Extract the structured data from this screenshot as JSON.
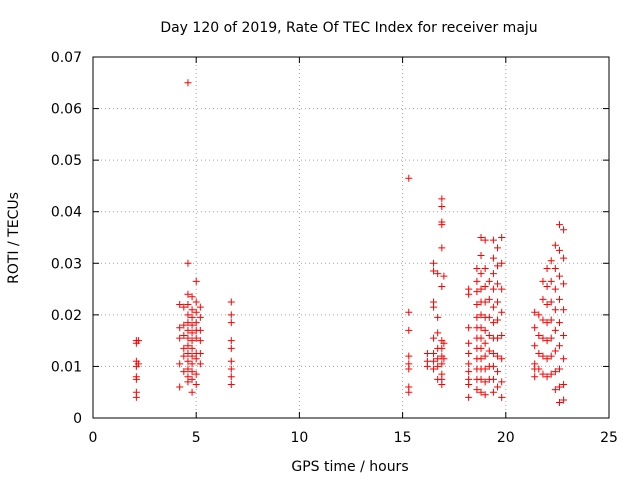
{
  "chart_data": {
    "type": "scatter",
    "title": "Day 120 of 2019, Rate Of TEC Index for receiver maju",
    "xlabel": "GPS time / hours",
    "ylabel": "ROTI / TECUs",
    "xlim": [
      0,
      25
    ],
    "ylim": [
      0,
      0.07
    ],
    "grid": true,
    "marker": "+",
    "color": "#ff0000",
    "xticks": [
      {
        "value": 0,
        "label": "0"
      },
      {
        "value": 5,
        "label": "5"
      },
      {
        "value": 10,
        "label": "10"
      },
      {
        "value": 15,
        "label": "15"
      },
      {
        "value": 20,
        "label": "20"
      },
      {
        "value": 25,
        "label": "25"
      }
    ],
    "yticks": [
      {
        "value": 0,
        "label": "0"
      },
      {
        "value": 0.01,
        "label": "0.01"
      },
      {
        "value": 0.02,
        "label": "0.02"
      },
      {
        "value": 0.03,
        "label": "0.03"
      },
      {
        "value": 0.04,
        "label": "0.04"
      },
      {
        "value": 0.05,
        "label": "0.05"
      },
      {
        "value": 0.06,
        "label": "0.06"
      },
      {
        "value": 0.07,
        "label": "0.07"
      }
    ],
    "series": [
      {
        "name": "ROTI",
        "points": [
          [
            2.1,
            0.015
          ],
          [
            2.1,
            0.0145
          ],
          [
            2.1,
            0.011
          ],
          [
            2.1,
            0.01
          ],
          [
            2.1,
            0.008
          ],
          [
            2.1,
            0.0075
          ],
          [
            2.1,
            0.005
          ],
          [
            2.1,
            0.004
          ],
          [
            2.2,
            0.015
          ],
          [
            2.2,
            0.0105
          ],
          [
            4.2,
            0.022
          ],
          [
            4.2,
            0.0175
          ],
          [
            4.2,
            0.0155
          ],
          [
            4.2,
            0.0105
          ],
          [
            4.2,
            0.006
          ],
          [
            4.4,
            0.0215
          ],
          [
            4.4,
            0.018
          ],
          [
            4.4,
            0.016
          ],
          [
            4.4,
            0.0135
          ],
          [
            4.4,
            0.012
          ],
          [
            4.4,
            0.009
          ],
          [
            4.6,
            0.065
          ],
          [
            4.6,
            0.03
          ],
          [
            4.6,
            0.024
          ],
          [
            4.6,
            0.022
          ],
          [
            4.6,
            0.02
          ],
          [
            4.6,
            0.0185
          ],
          [
            4.6,
            0.017
          ],
          [
            4.6,
            0.0155
          ],
          [
            4.6,
            0.014
          ],
          [
            4.6,
            0.0125
          ],
          [
            4.6,
            0.011
          ],
          [
            4.6,
            0.0095
          ],
          [
            4.6,
            0.008
          ],
          [
            4.6,
            0.007
          ],
          [
            4.8,
            0.0235
          ],
          [
            4.8,
            0.021
          ],
          [
            4.8,
            0.0195
          ],
          [
            4.8,
            0.018
          ],
          [
            4.8,
            0.0165
          ],
          [
            4.8,
            0.015
          ],
          [
            4.8,
            0.0135
          ],
          [
            4.8,
            0.012
          ],
          [
            4.8,
            0.0105
          ],
          [
            4.8,
            0.009
          ],
          [
            4.8,
            0.0075
          ],
          [
            4.8,
            0.005
          ],
          [
            5.0,
            0.0265
          ],
          [
            5.0,
            0.0225
          ],
          [
            5.0,
            0.0205
          ],
          [
            5.0,
            0.0185
          ],
          [
            5.0,
            0.017
          ],
          [
            5.0,
            0.0155
          ],
          [
            5.0,
            0.0125
          ],
          [
            5.0,
            0.0115
          ],
          [
            5.0,
            0.0085
          ],
          [
            5.0,
            0.0065
          ],
          [
            5.2,
            0.0215
          ],
          [
            5.2,
            0.0195
          ],
          [
            5.2,
            0.017
          ],
          [
            5.2,
            0.015
          ],
          [
            5.2,
            0.0125
          ],
          [
            5.2,
            0.0105
          ],
          [
            6.7,
            0.0225
          ],
          [
            6.7,
            0.02
          ],
          [
            6.7,
            0.0185
          ],
          [
            6.7,
            0.015
          ],
          [
            6.7,
            0.0135
          ],
          [
            6.7,
            0.011
          ],
          [
            6.7,
            0.0095
          ],
          [
            6.7,
            0.008
          ],
          [
            6.7,
            0.0065
          ],
          [
            15.3,
            0.0465
          ],
          [
            15.3,
            0.0205
          ],
          [
            15.3,
            0.017
          ],
          [
            15.3,
            0.012
          ],
          [
            15.3,
            0.0105
          ],
          [
            15.3,
            0.0095
          ],
          [
            15.3,
            0.006
          ],
          [
            15.3,
            0.005
          ],
          [
            16.2,
            0.0125
          ],
          [
            16.2,
            0.011
          ],
          [
            16.2,
            0.01
          ],
          [
            16.5,
            0.03
          ],
          [
            16.5,
            0.0285
          ],
          [
            16.5,
            0.0225
          ],
          [
            16.5,
            0.0215
          ],
          [
            16.5,
            0.0155
          ],
          [
            16.5,
            0.0125
          ],
          [
            16.5,
            0.011
          ],
          [
            16.5,
            0.0095
          ],
          [
            16.7,
            0.028
          ],
          [
            16.7,
            0.0195
          ],
          [
            16.7,
            0.0165
          ],
          [
            16.7,
            0.0135
          ],
          [
            16.7,
            0.0115
          ],
          [
            16.7,
            0.01
          ],
          [
            16.7,
            0.0075
          ],
          [
            16.9,
            0.0425
          ],
          [
            16.9,
            0.041
          ],
          [
            16.9,
            0.038
          ],
          [
            16.9,
            0.0375
          ],
          [
            16.9,
            0.033
          ],
          [
            16.9,
            0.0255
          ],
          [
            16.9,
            0.015
          ],
          [
            16.9,
            0.0135
          ],
          [
            16.9,
            0.012
          ],
          [
            16.9,
            0.0105
          ],
          [
            16.9,
            0.0085
          ],
          [
            16.9,
            0.0075
          ],
          [
            16.9,
            0.0065
          ],
          [
            17.0,
            0.0275
          ],
          [
            17.0,
            0.0145
          ],
          [
            17.0,
            0.0115
          ],
          [
            18.2,
            0.025
          ],
          [
            18.2,
            0.024
          ],
          [
            18.2,
            0.0175
          ],
          [
            18.2,
            0.0145
          ],
          [
            18.2,
            0.0125
          ],
          [
            18.2,
            0.0105
          ],
          [
            18.2,
            0.009
          ],
          [
            18.2,
            0.0075
          ],
          [
            18.2,
            0.0065
          ],
          [
            18.2,
            0.004
          ],
          [
            18.6,
            0.029
          ],
          [
            18.6,
            0.0265
          ],
          [
            18.6,
            0.0245
          ],
          [
            18.6,
            0.022
          ],
          [
            18.6,
            0.0195
          ],
          [
            18.6,
            0.0175
          ],
          [
            18.6,
            0.0155
          ],
          [
            18.6,
            0.0135
          ],
          [
            18.6,
            0.0115
          ],
          [
            18.6,
            0.0095
          ],
          [
            18.6,
            0.0075
          ],
          [
            18.6,
            0.0055
          ],
          [
            18.8,
            0.035
          ],
          [
            18.8,
            0.0315
          ],
          [
            18.8,
            0.028
          ],
          [
            18.8,
            0.025
          ],
          [
            18.8,
            0.0225
          ],
          [
            18.8,
            0.02
          ],
          [
            18.8,
            0.0175
          ],
          [
            18.8,
            0.0155
          ],
          [
            18.8,
            0.0135
          ],
          [
            18.8,
            0.0115
          ],
          [
            18.8,
            0.0095
          ],
          [
            18.8,
            0.0075
          ],
          [
            18.8,
            0.005
          ],
          [
            19.0,
            0.0345
          ],
          [
            19.0,
            0.029
          ],
          [
            19.0,
            0.0255
          ],
          [
            19.0,
            0.0225
          ],
          [
            19.0,
            0.0195
          ],
          [
            19.0,
            0.017
          ],
          [
            19.0,
            0.0145
          ],
          [
            19.0,
            0.012
          ],
          [
            19.0,
            0.0095
          ],
          [
            19.0,
            0.007
          ],
          [
            19.0,
            0.0045
          ],
          [
            19.2,
            0.0265
          ],
          [
            19.2,
            0.023
          ],
          [
            19.2,
            0.0195
          ],
          [
            19.2,
            0.016
          ],
          [
            19.2,
            0.013
          ],
          [
            19.2,
            0.01
          ],
          [
            19.2,
            0.0075
          ],
          [
            19.4,
            0.0345
          ],
          [
            19.4,
            0.031
          ],
          [
            19.4,
            0.028
          ],
          [
            19.4,
            0.025
          ],
          [
            19.4,
            0.0215
          ],
          [
            19.4,
            0.0185
          ],
          [
            19.4,
            0.0155
          ],
          [
            19.4,
            0.0125
          ],
          [
            19.4,
            0.01
          ],
          [
            19.4,
            0.0075
          ],
          [
            19.4,
            0.005
          ],
          [
            19.6,
            0.033
          ],
          [
            19.6,
            0.0295
          ],
          [
            19.6,
            0.026
          ],
          [
            19.6,
            0.0225
          ],
          [
            19.6,
            0.019
          ],
          [
            19.6,
            0.0155
          ],
          [
            19.6,
            0.012
          ],
          [
            19.6,
            0.009
          ],
          [
            19.6,
            0.006
          ],
          [
            19.8,
            0.035
          ],
          [
            19.8,
            0.03
          ],
          [
            19.8,
            0.025
          ],
          [
            19.8,
            0.0205
          ],
          [
            19.8,
            0.016
          ],
          [
            19.8,
            0.0115
          ],
          [
            19.8,
            0.007
          ],
          [
            19.8,
            0.004
          ],
          [
            21.4,
            0.0205
          ],
          [
            21.4,
            0.0175
          ],
          [
            21.4,
            0.014
          ],
          [
            21.4,
            0.0105
          ],
          [
            21.4,
            0.0095
          ],
          [
            21.4,
            0.008
          ],
          [
            21.6,
            0.02
          ],
          [
            21.6,
            0.016
          ],
          [
            21.6,
            0.0125
          ],
          [
            21.6,
            0.0095
          ],
          [
            21.8,
            0.0265
          ],
          [
            21.8,
            0.023
          ],
          [
            21.8,
            0.019
          ],
          [
            21.8,
            0.0155
          ],
          [
            21.8,
            0.012
          ],
          [
            21.8,
            0.0085
          ],
          [
            22.0,
            0.029
          ],
          [
            22.0,
            0.0255
          ],
          [
            22.0,
            0.022
          ],
          [
            22.0,
            0.0185
          ],
          [
            22.0,
            0.015
          ],
          [
            22.0,
            0.0115
          ],
          [
            22.0,
            0.008
          ],
          [
            22.2,
            0.0305
          ],
          [
            22.2,
            0.0265
          ],
          [
            22.2,
            0.0225
          ],
          [
            22.2,
            0.019
          ],
          [
            22.2,
            0.0155
          ],
          [
            22.2,
            0.012
          ],
          [
            22.2,
            0.0085
          ],
          [
            22.4,
            0.0335
          ],
          [
            22.4,
            0.029
          ],
          [
            22.4,
            0.025
          ],
          [
            22.4,
            0.021
          ],
          [
            22.4,
            0.017
          ],
          [
            22.4,
            0.013
          ],
          [
            22.4,
            0.009
          ],
          [
            22.4,
            0.0055
          ],
          [
            22.6,
            0.0375
          ],
          [
            22.6,
            0.0325
          ],
          [
            22.6,
            0.0275
          ],
          [
            22.6,
            0.023
          ],
          [
            22.6,
            0.0185
          ],
          [
            22.6,
            0.014
          ],
          [
            22.6,
            0.0095
          ],
          [
            22.6,
            0.006
          ],
          [
            22.6,
            0.003
          ],
          [
            22.8,
            0.0365
          ],
          [
            22.8,
            0.031
          ],
          [
            22.8,
            0.026
          ],
          [
            22.8,
            0.021
          ],
          [
            22.8,
            0.016
          ],
          [
            22.8,
            0.0115
          ],
          [
            22.8,
            0.0065
          ],
          [
            22.8,
            0.0035
          ]
        ]
      }
    ]
  }
}
